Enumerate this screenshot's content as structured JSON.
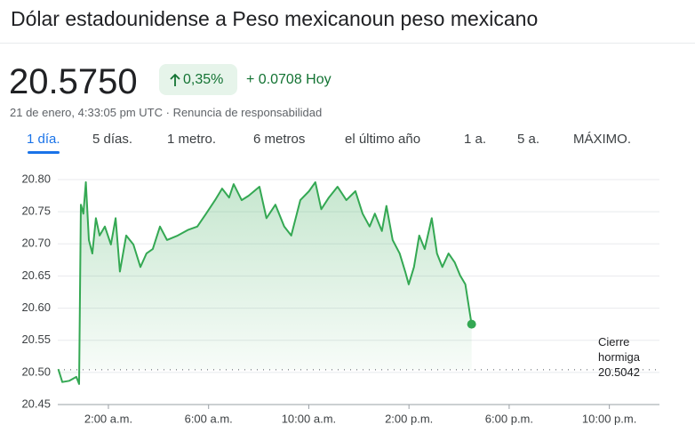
{
  "header": {
    "title": "Dólar estadounidense a Peso mexicanoun peso mexicano",
    "price": "20.5750",
    "change_percent": "0,35%",
    "change": "+ 0.0708 Hoy",
    "timestamp": "21 de enero, 4:33:05 pm UTC",
    "disclaimer": "Renuncia de responsabilidad",
    "tabs": [
      "1 día.",
      "5 días.",
      "1 metro.",
      "6 metros",
      "el último año",
      "1 a.",
      "5 a.",
      "MÁXIMO."
    ]
  },
  "chart_data": {
    "type": "line",
    "color": "#34a853",
    "x": [
      0.0,
      0.16,
      0.44,
      0.72,
      0.83,
      0.9,
      1.0,
      1.1,
      1.22,
      1.36,
      1.5,
      1.65,
      1.86,
      2.1,
      2.29,
      2.46,
      2.71,
      3.0,
      3.28,
      3.52,
      3.77,
      4.06,
      4.34,
      4.77,
      5.19,
      5.55,
      5.9,
      6.26,
      6.54,
      6.82,
      7.0,
      7.32,
      7.6,
      8.03,
      8.31,
      8.67,
      9.02,
      9.3,
      9.66,
      10.01,
      10.26,
      10.5,
      10.8,
      11.15,
      11.5,
      11.86,
      12.15,
      12.43,
      12.64,
      12.92,
      13.1,
      13.35,
      13.63,
      13.85,
      13.99,
      14.2,
      14.41,
      14.63,
      14.91,
      15.12,
      15.33,
      15.58,
      15.83,
      16.04,
      16.25,
      16.5
    ],
    "values": [
      20.505,
      20.485,
      20.487,
      20.493,
      20.482,
      20.761,
      20.747,
      20.796,
      20.706,
      20.685,
      20.74,
      20.713,
      20.727,
      20.699,
      20.74,
      20.657,
      20.713,
      20.699,
      20.664,
      20.685,
      20.692,
      20.727,
      20.706,
      20.713,
      20.722,
      20.727,
      20.747,
      20.768,
      20.786,
      20.772,
      20.793,
      20.768,
      20.775,
      20.789,
      20.74,
      20.761,
      20.727,
      20.713,
      20.768,
      20.782,
      20.796,
      20.754,
      20.772,
      20.789,
      20.768,
      20.782,
      20.747,
      20.727,
      20.747,
      20.72,
      20.759,
      20.706,
      20.685,
      20.657,
      20.637,
      20.664,
      20.713,
      20.692,
      20.74,
      20.685,
      20.664,
      20.685,
      20.671,
      20.651,
      20.637,
      20.575
    ],
    "xlim": [
      0,
      24
    ],
    "xticks": [
      {
        "value": 2,
        "label": "2:00 a.m."
      },
      {
        "value": 6,
        "label": "6:00 a.m."
      },
      {
        "value": 10,
        "label": "10:00 a.m."
      },
      {
        "value": 14,
        "label": "2:00 p.m."
      },
      {
        "value": 18,
        "label": "6:00 p.m."
      },
      {
        "value": 22,
        "label": "10:00 p.m."
      }
    ],
    "ylim": [
      20.45,
      20.8
    ],
    "yticks": [
      20.45,
      {
        "value": 20.5,
        "label": "20.50"
      },
      20.55,
      {
        "value": 20.6,
        "label": "20.60"
      },
      20.65,
      {
        "value": 20.7,
        "label": "20.70"
      },
      20.75,
      {
        "value": 20.8,
        "label": "20.80"
      }
    ],
    "grid": true,
    "previous_close": 20.5042,
    "previous_close_label": "Cierre hormiga"
  }
}
